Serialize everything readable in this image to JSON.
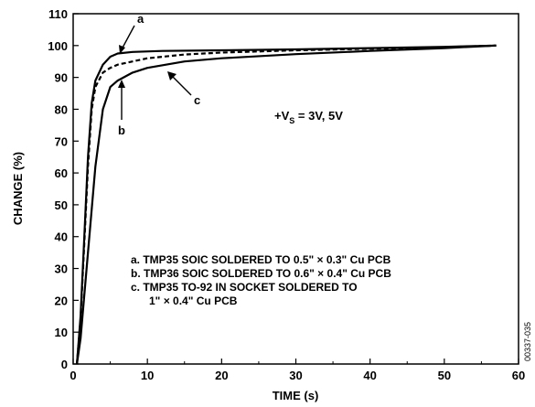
{
  "chart_data": {
    "type": "line",
    "xlabel": "TIME (s)",
    "ylabel": "CHANGE (%)",
    "xlim": [
      0,
      60
    ],
    "ylim": [
      0,
      110
    ],
    "x_ticks": [
      "0",
      "10",
      "20",
      "30",
      "40",
      "50",
      "60"
    ],
    "y_ticks": [
      "0",
      "10",
      "20",
      "30",
      "40",
      "50",
      "60",
      "70",
      "80",
      "90",
      "100",
      "110"
    ],
    "grid": false,
    "series": [
      {
        "name": "a",
        "style": "solid",
        "color": "#000000",
        "points": [
          [
            0.5,
            0
          ],
          [
            1,
            15
          ],
          [
            1.5,
            40
          ],
          [
            2,
            65
          ],
          [
            2.5,
            82
          ],
          [
            3,
            89
          ],
          [
            4,
            94
          ],
          [
            5,
            96.5
          ],
          [
            6,
            97.5
          ],
          [
            8,
            98
          ],
          [
            12,
            98.3
          ],
          [
            20,
            98.5
          ],
          [
            30,
            98.8
          ],
          [
            40,
            99.2
          ],
          [
            50,
            99.6
          ],
          [
            57,
            100
          ]
        ]
      },
      {
        "name": "b",
        "style": "dashed",
        "color": "#000000",
        "points": [
          [
            0.5,
            0
          ],
          [
            1,
            14
          ],
          [
            1.5,
            38
          ],
          [
            2,
            62
          ],
          [
            2.5,
            80
          ],
          [
            3,
            87
          ],
          [
            4,
            91.5
          ],
          [
            5,
            93
          ],
          [
            6,
            94
          ],
          [
            8,
            95
          ],
          [
            10,
            96
          ],
          [
            15,
            97.2
          ],
          [
            20,
            97.8
          ],
          [
            30,
            98.5
          ],
          [
            40,
            99
          ],
          [
            50,
            99.5
          ],
          [
            57,
            100
          ]
        ]
      },
      {
        "name": "c",
        "style": "solid",
        "color": "#000000",
        "points": [
          [
            0.5,
            0
          ],
          [
            1,
            8
          ],
          [
            2,
            35
          ],
          [
            3,
            62
          ],
          [
            4,
            80
          ],
          [
            5,
            87
          ],
          [
            6,
            89
          ],
          [
            8,
            91.5
          ],
          [
            10,
            93
          ],
          [
            15,
            95
          ],
          [
            20,
            96
          ],
          [
            30,
            97.3
          ],
          [
            40,
            98.3
          ],
          [
            50,
            99.2
          ],
          [
            57,
            100
          ]
        ]
      }
    ],
    "annotations": {
      "condition_main": "+V",
      "condition_sub": "S",
      "condition_rest": " = 3V, 5V",
      "label_a": "a",
      "label_b": "b",
      "label_c": "c"
    },
    "legend": [
      "a.  TMP35 SOIC SOLDERED TO 0.5\" × 0.3\" Cu PCB",
      "b.  TMP36 SOIC SOLDERED TO 0.6\" × 0.4\" Cu PCB",
      "c.  TMP35 TO-92 IN SOCKET SOLDERED TO",
      "1\" × 0.4\" Cu PCB"
    ],
    "figure_id": "00337-035"
  }
}
